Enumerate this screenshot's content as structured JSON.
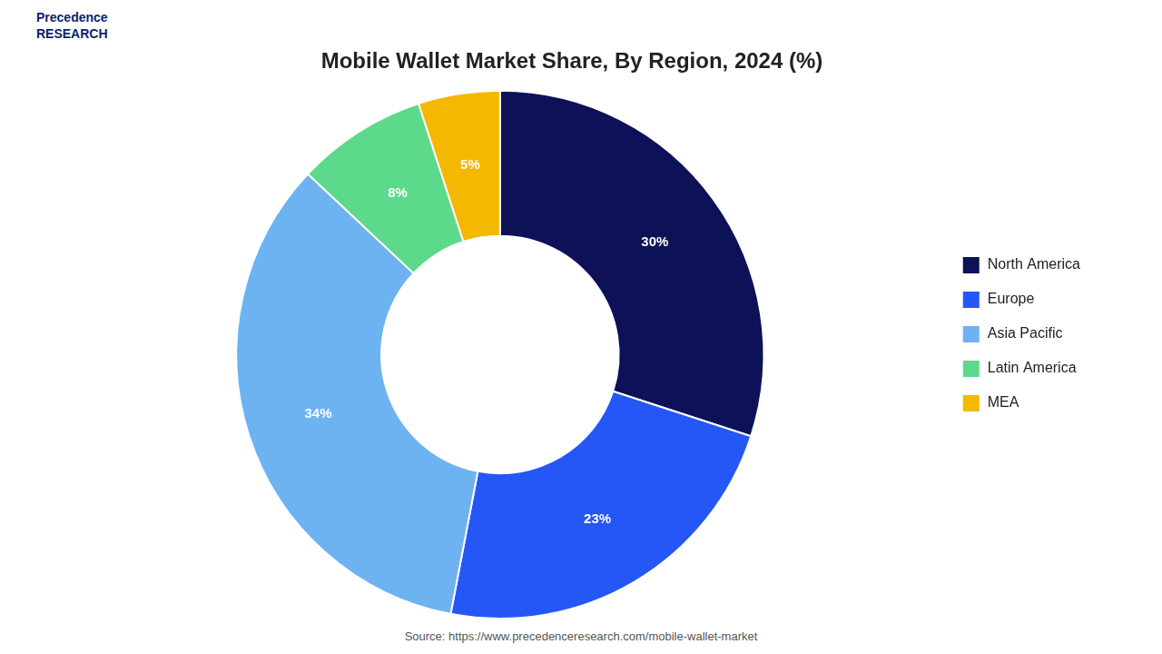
{
  "chart_data": {
    "type": "doughnut",
    "title": "Mobile Wallet Market Share, By Region, 2024 (%)",
    "categories": [
      "North America",
      "Europe",
      "Asia Pacific",
      "Latin America",
      "MEA"
    ],
    "values": [
      30,
      23,
      34,
      8,
      5
    ],
    "value_labels": [
      "30%",
      "23%",
      "34%",
      "8%",
      "5%"
    ],
    "colors": [
      "#0d1158",
      "#2457f5",
      "#6db3f2",
      "#5dd98c",
      "#f5b800"
    ],
    "data_labels": true,
    "legend": "right",
    "annotations": [
      "Precedence\nRESEARCH",
      "Source: https://www.precedenceresearch.com/mobile-wallet-market"
    ]
  }
}
